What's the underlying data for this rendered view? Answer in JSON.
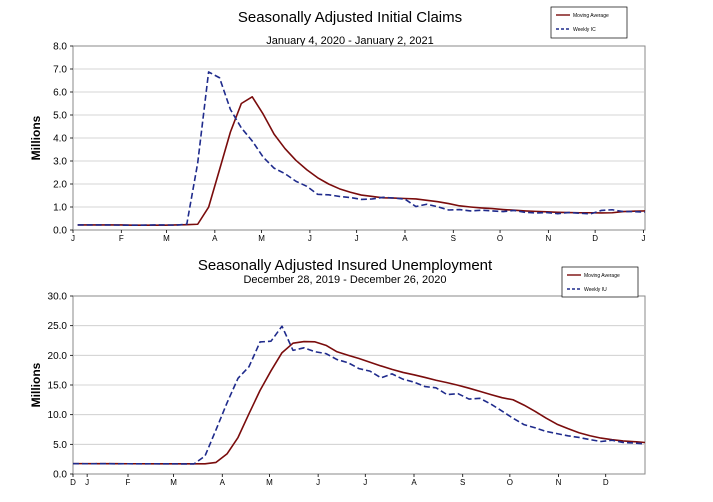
{
  "chart_data": [
    {
      "type": "line",
      "title": "Seasonally Adjusted Initial Claims",
      "subtitle": "January 4, 2020 - January 2, 2021",
      "ylabel": "Millions",
      "xlabel": "",
      "ylim": [
        0,
        8
      ],
      "yticks": [
        "0.0",
        "1.0",
        "2.0",
        "3.0",
        "4.0",
        "5.0",
        "6.0",
        "7.0",
        "8.0"
      ],
      "xticks": [
        "J",
        "F",
        "M",
        "A",
        "M",
        "J",
        "J",
        "A",
        "S",
        "O",
        "N",
        "D",
        "J"
      ],
      "grid": true,
      "legend_position": "top-right",
      "x": [
        "2020-01-04",
        "2020-01-11",
        "2020-01-18",
        "2020-01-25",
        "2020-02-01",
        "2020-02-08",
        "2020-02-15",
        "2020-02-22",
        "2020-02-29",
        "2020-03-07",
        "2020-03-14",
        "2020-03-21",
        "2020-03-28",
        "2020-04-04",
        "2020-04-11",
        "2020-04-18",
        "2020-04-25",
        "2020-05-02",
        "2020-05-09",
        "2020-05-16",
        "2020-05-23",
        "2020-05-30",
        "2020-06-06",
        "2020-06-13",
        "2020-06-20",
        "2020-06-27",
        "2020-07-04",
        "2020-07-11",
        "2020-07-18",
        "2020-07-25",
        "2020-08-01",
        "2020-08-08",
        "2020-08-15",
        "2020-08-22",
        "2020-08-29",
        "2020-09-05",
        "2020-09-12",
        "2020-09-19",
        "2020-09-26",
        "2020-10-03",
        "2020-10-10",
        "2020-10-17",
        "2020-10-24",
        "2020-10-31",
        "2020-11-07",
        "2020-11-14",
        "2020-11-21",
        "2020-11-28",
        "2020-12-05",
        "2020-12-12",
        "2020-12-19",
        "2020-12-26",
        "2021-01-02"
      ],
      "series": [
        {
          "name": "Moving Average",
          "style": "solid",
          "color": "#7a0c0c",
          "values": [
            0.22,
            0.22,
            0.22,
            0.22,
            0.22,
            0.21,
            0.21,
            0.21,
            0.21,
            0.22,
            0.23,
            0.25,
            0.99,
            2.62,
            4.26,
            5.5,
            5.79,
            5.04,
            4.17,
            3.54,
            3.03,
            2.62,
            2.27,
            2.0,
            1.79,
            1.64,
            1.52,
            1.46,
            1.4,
            1.39,
            1.37,
            1.35,
            1.29,
            1.23,
            1.15,
            1.05,
            1.0,
            0.96,
            0.93,
            0.89,
            0.86,
            0.83,
            0.81,
            0.79,
            0.77,
            0.76,
            0.75,
            0.75,
            0.74,
            0.75,
            0.8,
            0.82,
            0.83
          ]
        },
        {
          "name": "Weekly IC",
          "style": "dashed",
          "color": "#1f2b8c",
          "values": [
            0.22,
            0.22,
            0.22,
            0.22,
            0.21,
            0.21,
            0.21,
            0.22,
            0.22,
            0.21,
            0.25,
            2.91,
            6.87,
            6.62,
            5.24,
            4.44,
            3.87,
            3.17,
            2.69,
            2.45,
            2.12,
            1.9,
            1.55,
            1.53,
            1.46,
            1.41,
            1.33,
            1.35,
            1.42,
            1.39,
            1.34,
            1.02,
            1.12,
            1.01,
            0.87,
            0.89,
            0.83,
            0.86,
            0.83,
            0.8,
            0.85,
            0.77,
            0.74,
            0.76,
            0.71,
            0.76,
            0.73,
            0.7,
            0.85,
            0.88,
            0.8,
            0.8,
            0.78
          ]
        }
      ]
    },
    {
      "type": "line",
      "title": "Seasonally Adjusted Insured Unemployment",
      "subtitle": "December 28, 2019 - December 26, 2020",
      "ylabel": "Millions",
      "xlabel": "",
      "ylim": [
        0,
        30
      ],
      "yticks": [
        "0.0",
        "5.0",
        "10.0",
        "15.0",
        "20.0",
        "25.0",
        "30.0"
      ],
      "xticks": [
        "D",
        "J",
        "F",
        "M",
        "A",
        "M",
        "J",
        "J",
        "A",
        "S",
        "O",
        "N",
        "D"
      ],
      "grid": true,
      "legend_position": "top-right",
      "x": [
        "2019-12-28",
        "2020-01-04",
        "2020-01-11",
        "2020-01-18",
        "2020-01-25",
        "2020-02-01",
        "2020-02-08",
        "2020-02-15",
        "2020-02-22",
        "2020-02-29",
        "2020-03-07",
        "2020-03-14",
        "2020-03-21",
        "2020-03-28",
        "2020-04-04",
        "2020-04-11",
        "2020-04-18",
        "2020-04-25",
        "2020-05-02",
        "2020-05-09",
        "2020-05-16",
        "2020-05-23",
        "2020-05-30",
        "2020-06-06",
        "2020-06-13",
        "2020-06-20",
        "2020-06-27",
        "2020-07-04",
        "2020-07-11",
        "2020-07-18",
        "2020-07-25",
        "2020-08-01",
        "2020-08-08",
        "2020-08-15",
        "2020-08-22",
        "2020-08-29",
        "2020-09-05",
        "2020-09-12",
        "2020-09-19",
        "2020-09-26",
        "2020-10-03",
        "2020-10-10",
        "2020-10-17",
        "2020-10-24",
        "2020-10-31",
        "2020-11-07",
        "2020-11-14",
        "2020-11-21",
        "2020-11-28",
        "2020-12-05",
        "2020-12-12",
        "2020-12-19",
        "2020-12-26"
      ],
      "series": [
        {
          "name": "Moving Average",
          "style": "solid",
          "color": "#7a0c0c",
          "values": [
            1.75,
            1.75,
            1.74,
            1.74,
            1.74,
            1.73,
            1.73,
            1.72,
            1.72,
            1.72,
            1.72,
            1.72,
            1.72,
            1.95,
            3.39,
            6.15,
            10.16,
            14.07,
            17.39,
            20.44,
            22.05,
            22.32,
            22.27,
            21.68,
            20.6,
            20.02,
            19.46,
            18.84,
            18.21,
            17.63,
            17.12,
            16.72,
            16.27,
            15.8,
            15.4,
            14.96,
            14.46,
            13.92,
            13.38,
            12.86,
            12.51,
            11.61,
            10.56,
            9.42,
            8.39,
            7.64,
            6.95,
            6.45,
            6.05,
            5.79,
            5.57,
            5.45,
            5.31
          ]
        },
        {
          "name": "Weekly IU",
          "style": "dashed",
          "color": "#1f2b8c",
          "values": [
            1.75,
            1.73,
            1.73,
            1.74,
            1.72,
            1.73,
            1.72,
            1.73,
            1.72,
            1.71,
            1.7,
            1.7,
            3.03,
            7.45,
            11.98,
            16.13,
            18.08,
            22.25,
            22.38,
            24.91,
            20.84,
            21.27,
            20.61,
            20.29,
            19.29,
            18.76,
            17.76,
            17.34,
            16.2,
            16.88,
            15.98,
            15.48,
            14.73,
            14.53,
            13.38,
            13.54,
            12.63,
            12.75,
            11.77,
            10.61,
            9.4,
            8.32,
            7.79,
            7.18,
            6.8,
            6.44,
            6.16,
            5.79,
            5.48,
            5.69,
            5.32,
            5.22,
            5.06
          ]
        }
      ]
    }
  ]
}
